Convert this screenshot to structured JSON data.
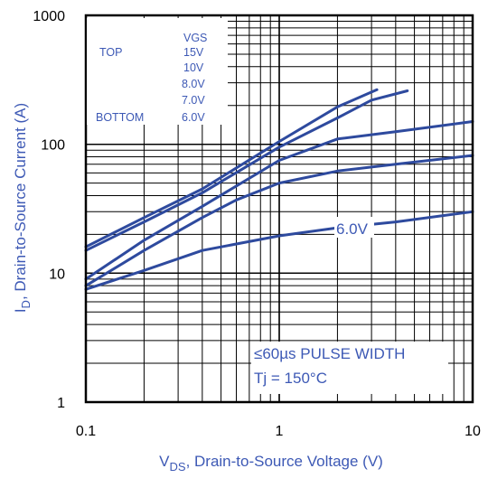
{
  "chart_data": {
    "type": "line",
    "x_scale": "log",
    "y_scale": "log",
    "xlim": [
      0.1,
      10
    ],
    "ylim": [
      1,
      1000
    ],
    "grid": true,
    "x_ticks": [
      "0.1",
      "1",
      "10"
    ],
    "y_ticks": [
      "1",
      "10",
      "100",
      "1000"
    ],
    "xlabel": {
      "main": "V",
      "sub": "DS",
      "rest": ", Drain-to-Source Voltage (V)"
    },
    "ylabel": {
      "main": "I",
      "sub": "D",
      "rest": ", Drain-to-Source Current (A)"
    },
    "legend": {
      "top_label": "TOP",
      "bottom_label": "BOTTOM",
      "header": "VGS",
      "entries": [
        "15V",
        "10V",
        "8.0V",
        "7.0V",
        "6.0V"
      ]
    },
    "annotations": {
      "curve_label": "6.0V",
      "pulse": "≤60µs PULSE WIDTH",
      "temperature": "Tj = 150°C"
    },
    "series": [
      {
        "name": "15V",
        "x": [
          0.1,
          0.2,
          0.4,
          1.0,
          2.0,
          3.2
        ],
        "y": [
          16,
          27,
          45,
          105,
          195,
          265
        ]
      },
      {
        "name": "10V",
        "x": [
          0.1,
          0.2,
          0.4,
          1.0,
          2.0,
          3.0,
          4.6
        ],
        "y": [
          15,
          25,
          42,
          95,
          160,
          220,
          260
        ]
      },
      {
        "name": "8.0V",
        "x": [
          0.1,
          0.2,
          0.4,
          1.0,
          2.0,
          4.0,
          10
        ],
        "y": [
          9,
          18,
          33,
          75,
          110,
          125,
          150
        ]
      },
      {
        "name": "7.0V",
        "x": [
          0.1,
          0.2,
          0.4,
          0.6,
          1.0,
          2.0,
          4.0,
          10
        ],
        "y": [
          8,
          15,
          27,
          37,
          50,
          62,
          70,
          82
        ]
      },
      {
        "name": "6.0V",
        "x": [
          0.1,
          0.2,
          0.4,
          1.0,
          2.0,
          4.0,
          10
        ],
        "y": [
          7.5,
          10.5,
          15,
          19.5,
          22.5,
          25,
          30
        ]
      }
    ],
    "colors": {
      "series": "#2e4a9e",
      "text_blue": "#3d59b5",
      "axis": "#000000",
      "grid": "#000000"
    }
  }
}
